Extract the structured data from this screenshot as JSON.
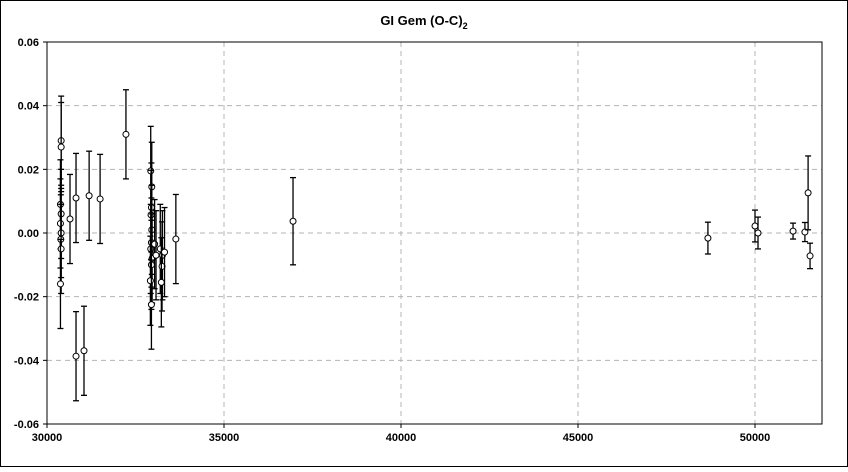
{
  "chart_data": {
    "type": "scatter",
    "title": "GI Gem (O-C)",
    "title_subscript": "2",
    "xlabel": "",
    "ylabel": "",
    "xlim": [
      30000,
      52000
    ],
    "ylim": [
      -0.06,
      0.06
    ],
    "xticks": [
      30000,
      35000,
      40000,
      45000,
      50000
    ],
    "xtick_labels": [
      "30000",
      "35000",
      "40000",
      "45000",
      "50000"
    ],
    "yticks": [
      -0.06,
      -0.04,
      -0.02,
      0.0,
      0.02,
      0.04,
      0.06
    ],
    "ytick_labels": [
      "-0.06",
      "-0.04",
      "-0.02",
      "0.00",
      "0.02",
      "0.04",
      "0.06"
    ],
    "grid": true,
    "legend": "none",
    "marker": "open-circle",
    "color": "#000000",
    "points": [
      {
        "x": 30400,
        "y": 0.029,
        "err": 0.014
      },
      {
        "x": 30400,
        "y": 0.027,
        "err": 0.014
      },
      {
        "x": 30380,
        "y": 0.009,
        "err": 0.014
      },
      {
        "x": 30400,
        "y": 0.006,
        "err": 0.014
      },
      {
        "x": 30380,
        "y": 0.003,
        "err": 0.014
      },
      {
        "x": 30400,
        "y": 0.0,
        "err": 0.014
      },
      {
        "x": 30390,
        "y": -0.002,
        "err": 0.014
      },
      {
        "x": 30400,
        "y": -0.005,
        "err": 0.014
      },
      {
        "x": 30380,
        "y": -0.016,
        "err": 0.014
      },
      {
        "x": 30650,
        "y": 0.0044,
        "err": 0.014
      },
      {
        "x": 30820,
        "y": 0.011,
        "err": 0.014
      },
      {
        "x": 30820,
        "y": -0.0387,
        "err": 0.014
      },
      {
        "x": 31045,
        "y": -0.037,
        "err": 0.014
      },
      {
        "x": 31190,
        "y": 0.0117,
        "err": 0.014
      },
      {
        "x": 31500,
        "y": 0.0107,
        "err": 0.014
      },
      {
        "x": 32230,
        "y": 0.031,
        "err": 0.014
      },
      {
        "x": 32930,
        "y": 0.0195,
        "err": 0.014
      },
      {
        "x": 32960,
        "y": 0.0145,
        "err": 0.014
      },
      {
        "x": 32950,
        "y": 0.008,
        "err": 0.014
      },
      {
        "x": 32940,
        "y": 0.0057,
        "err": 0.014
      },
      {
        "x": 32960,
        "y": 0.001,
        "err": 0.014
      },
      {
        "x": 32950,
        "y": -0.003,
        "err": 0.014
      },
      {
        "x": 32930,
        "y": -0.005,
        "err": 0.014
      },
      {
        "x": 32970,
        "y": -0.008,
        "err": 0.014
      },
      {
        "x": 32950,
        "y": -0.01,
        "err": 0.014
      },
      {
        "x": 32920,
        "y": -0.015,
        "err": 0.014
      },
      {
        "x": 32950,
        "y": -0.0225,
        "err": 0.014
      },
      {
        "x": 33040,
        "y": -0.0035,
        "err": 0.014
      },
      {
        "x": 33080,
        "y": -0.007,
        "err": 0.014
      },
      {
        "x": 33200,
        "y": -0.005,
        "err": 0.014
      },
      {
        "x": 33260,
        "y": -0.007,
        "err": 0.014
      },
      {
        "x": 33250,
        "y": -0.0105,
        "err": 0.014
      },
      {
        "x": 33230,
        "y": -0.0155,
        "err": 0.014
      },
      {
        "x": 33320,
        "y": -0.006,
        "err": 0.014
      },
      {
        "x": 33640,
        "y": -0.0019,
        "err": 0.014
      },
      {
        "x": 36950,
        "y": 0.0037,
        "err": 0.0137
      },
      {
        "x": 48670,
        "y": -0.0016,
        "err": 0.005
      },
      {
        "x": 50000,
        "y": 0.0022,
        "err": 0.005
      },
      {
        "x": 50085,
        "y": 0.0,
        "err": 0.005
      },
      {
        "x": 51075,
        "y": 0.0006,
        "err": 0.0025
      },
      {
        "x": 51410,
        "y": 0.0003,
        "err": 0.003
      },
      {
        "x": 51500,
        "y": 0.0126,
        "err": 0.0116
      },
      {
        "x": 51555,
        "y": -0.0072,
        "err": 0.004
      }
    ]
  }
}
